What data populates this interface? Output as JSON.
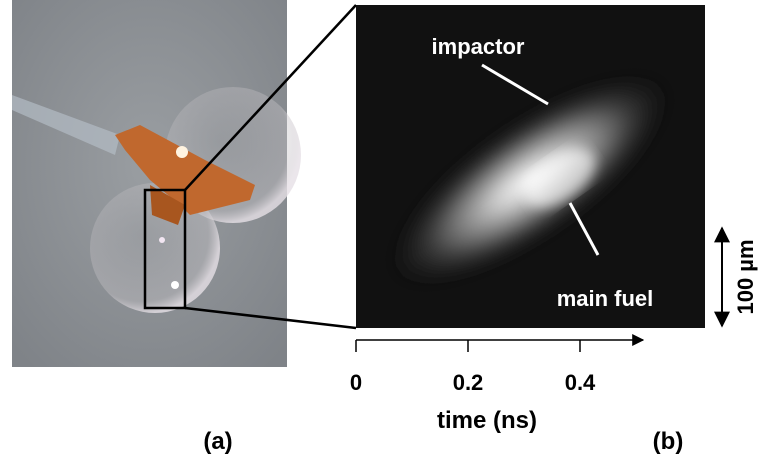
{
  "panel_a": {
    "label": "(a)"
  },
  "panel_b": {
    "label": "(b)",
    "annotations": [
      "impactor",
      "main fuel"
    ],
    "scale_bar": "100 µm",
    "x_axis": {
      "title": "time (ns)",
      "xlim": [
        0,
        0.5
      ],
      "xticks": [
        0,
        0.2,
        0.4
      ]
    }
  }
}
